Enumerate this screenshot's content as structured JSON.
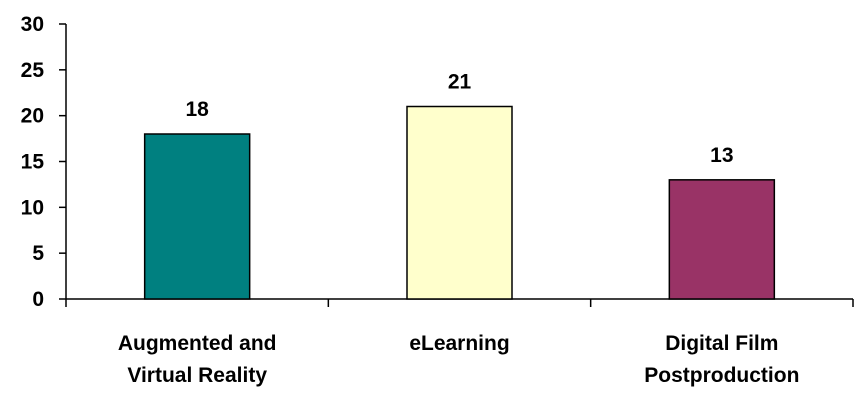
{
  "chart_data": {
    "type": "bar",
    "categories": [
      [
        "Augmented and",
        "Virtual Reality"
      ],
      [
        "eLearning"
      ],
      [
        "Digital Film",
        "Postproduction"
      ]
    ],
    "values": [
      18,
      21,
      13
    ],
    "colors": [
      "#008080",
      "#FFFFCC",
      "#993366"
    ],
    "data_labels": [
      "18",
      "21",
      "13"
    ],
    "y_ticks": [
      "0",
      "5",
      "10",
      "15",
      "20",
      "25",
      "30"
    ],
    "ylim": [
      0,
      30
    ],
    "grid": false,
    "legend": false
  }
}
